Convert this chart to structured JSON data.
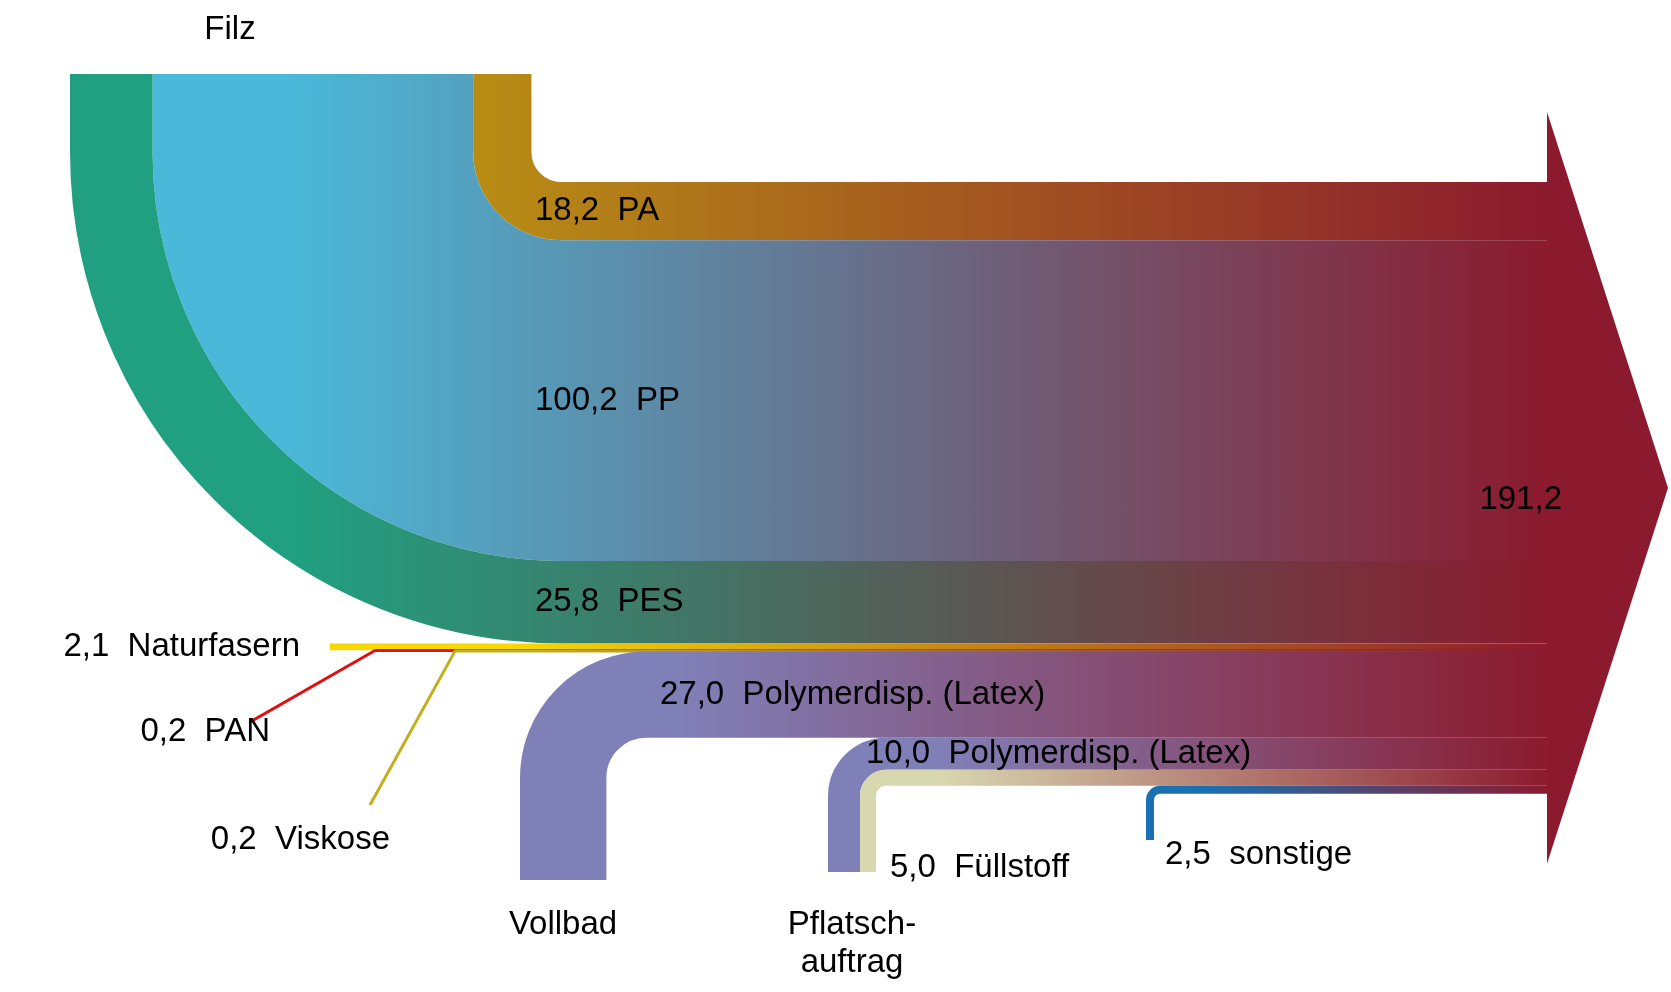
{
  "chart_data": {
    "type": "other",
    "categories": [
      "PA",
      "PP",
      "PES",
      "Naturfasern",
      "PAN",
      "Viskose",
      "Polymerdisp. (Latex)",
      "Polymerdisp. (Latex)",
      "Füllstoff",
      "sonstige"
    ],
    "series": [
      {
        "name": "Filz",
        "values": [
          18.2,
          100.2,
          25.8,
          null,
          null,
          null,
          null,
          null,
          null,
          null
        ],
        "value_labels": [
          "18,2",
          "100,2",
          "25,8",
          null,
          null,
          null,
          null,
          null,
          null,
          null
        ],
        "colors": [
          "#c0a010",
          "#4ab8d8",
          "#20a080",
          null,
          null,
          null,
          null,
          null,
          null,
          null
        ]
      },
      {
        "values": [
          null,
          null,
          null,
          2.1,
          0.2,
          0.2,
          null,
          null,
          null,
          null
        ],
        "value_labels": [
          null,
          null,
          null,
          "2,1",
          "0,2",
          "0,2",
          null,
          null,
          null,
          null
        ],
        "colors": [
          null,
          null,
          null,
          "#f8d800",
          "#e01010",
          "#c0b020",
          null,
          null,
          null,
          null
        ]
      },
      {
        "name": "Vollbad",
        "values": [
          null,
          null,
          null,
          null,
          null,
          null,
          27.0,
          null,
          null,
          null
        ],
        "value_labels": [
          null,
          null,
          null,
          null,
          null,
          null,
          "27,0",
          null,
          null,
          null
        ],
        "colors": [
          null,
          null,
          null,
          null,
          null,
          null,
          "#8080b8",
          null,
          null,
          null
        ]
      },
      {
        "name": "Pflatsch-auftrag",
        "values": [
          null,
          null,
          null,
          null,
          null,
          null,
          null,
          10.0,
          5.0,
          null
        ],
        "value_labels": [
          null,
          null,
          null,
          null,
          null,
          null,
          null,
          "10,0",
          "5,0",
          null
        ],
        "colors": [
          null,
          null,
          null,
          null,
          null,
          null,
          null,
          "#8080b8",
          "#d8d8b0",
          null
        ]
      },
      {
        "values": [
          null,
          null,
          null,
          null,
          null,
          null,
          null,
          null,
          null,
          2.5
        ],
        "value_labels": [
          null,
          null,
          null,
          null,
          null,
          null,
          null,
          null,
          null,
          "2,5"
        ],
        "colors": [
          null,
          null,
          null,
          null,
          null,
          null,
          null,
          null,
          null,
          "#1a70b0"
        ]
      }
    ],
    "totals": [
      "191,2"
    ]
  }
}
